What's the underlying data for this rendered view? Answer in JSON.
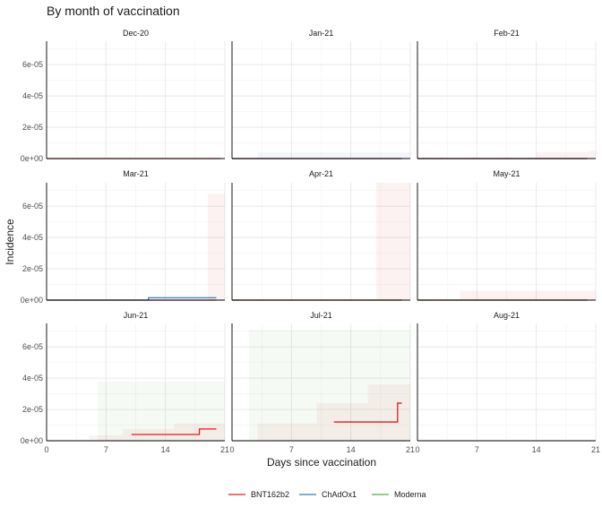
{
  "chart_data": {
    "type": "line",
    "title": "By month of vaccination",
    "xlabel": "Days since vaccination",
    "ylabel": "Incidence",
    "xlim": [
      0,
      21
    ],
    "ylim": [
      0,
      7.5e-05
    ],
    "x_ticks": [
      0,
      7,
      14,
      21
    ],
    "x_tick_labels": [
      "0",
      "7",
      "14",
      "21"
    ],
    "y_ticks": [
      0,
      2e-05,
      4e-05,
      6e-05
    ],
    "y_tick_labels": [
      "0e+00",
      "2e-05",
      "4e-05",
      "6e-05"
    ],
    "grid": true,
    "legend_position": "bottom",
    "legend": [
      {
        "name": "BNT162b2",
        "color": "#e41a1c"
      },
      {
        "name": "ChAdOx1",
        "color": "#377eb8"
      },
      {
        "name": "Moderna",
        "color": "#4daf4a"
      }
    ],
    "panels": [
      {
        "label": "Dec-20",
        "series": [
          {
            "name": "BNT162b2",
            "x": [
              0,
              20.5
            ],
            "y": [
              0,
              0
            ]
          }
        ],
        "bands": []
      },
      {
        "label": "Jan-21",
        "series": [
          {
            "name": "BNT162b2",
            "x": [
              0,
              20
            ],
            "y": [
              0,
              0
            ]
          },
          {
            "name": "ChAdOx1",
            "x": [
              0,
              20
            ],
            "y": [
              0,
              0
            ]
          }
        ],
        "bands": [
          {
            "series": "ChAdOx1",
            "x0": 3,
            "x1": 21,
            "lower": 0,
            "upper": 4e-06
          }
        ]
      },
      {
        "label": "Feb-21",
        "series": [
          {
            "name": "BNT162b2",
            "x": [
              0,
              20
            ],
            "y": [
              0,
              0
            ]
          },
          {
            "name": "ChAdOx1",
            "x": [
              0,
              20
            ],
            "y": [
              0,
              0
            ]
          }
        ],
        "bands": [
          {
            "series": "BNT162b2",
            "x0": 14,
            "x1": 20,
            "lower": 0,
            "upper": 4e-06
          },
          {
            "series": "BNT162b2",
            "x0": 20,
            "x1": 21,
            "lower": 0,
            "upper": 5e-06
          }
        ]
      },
      {
        "label": "Mar-21",
        "series": [
          {
            "name": "BNT162b2",
            "x": [
              0,
              20
            ],
            "y": [
              0,
              0
            ]
          },
          {
            "name": "ChAdOx1",
            "x": [
              0,
              12,
              12,
              20
            ],
            "y": [
              0,
              0,
              1.5e-06,
              1.5e-06
            ]
          }
        ],
        "bands": [
          {
            "series": "BNT162b2",
            "x0": 19,
            "x1": 21,
            "lower": 0,
            "upper": 6.8e-05
          }
        ]
      },
      {
        "label": "Apr-21",
        "series": [
          {
            "name": "BNT162b2",
            "x": [
              0,
              20
            ],
            "y": [
              0,
              0
            ]
          },
          {
            "name": "Moderna",
            "x": [
              0,
              20
            ],
            "y": [
              0,
              0
            ]
          }
        ],
        "bands": [
          {
            "series": "BNT162b2",
            "x0": 17,
            "x1": 21,
            "lower": 0,
            "upper": 7.5e-05
          }
        ]
      },
      {
        "label": "May-21",
        "series": [
          {
            "name": "BNT162b2",
            "x": [
              0,
              20
            ],
            "y": [
              0,
              0
            ]
          },
          {
            "name": "Moderna",
            "x": [
              0,
              20
            ],
            "y": [
              0,
              0
            ]
          }
        ],
        "bands": [
          {
            "series": "BNT162b2",
            "x0": 5,
            "x1": 21,
            "lower": 0,
            "upper": 6e-06
          }
        ]
      },
      {
        "label": "Jun-21",
        "series": [
          {
            "name": "BNT162b2",
            "x": [
              10,
              18,
              18,
              20
            ],
            "y": [
              4e-06,
              4e-06,
              7.5e-06,
              7.5e-06
            ]
          }
        ],
        "bands": [
          {
            "series": "Moderna",
            "x0": 6,
            "x1": 21,
            "lower": 0,
            "upper": 3.8e-05
          },
          {
            "series": "BNT162b2",
            "x0": 5,
            "x1": 9,
            "lower": 0,
            "upper": 3.5e-06
          },
          {
            "series": "BNT162b2",
            "x0": 9,
            "x1": 15,
            "lower": 0,
            "upper": 7.5e-06
          },
          {
            "series": "BNT162b2",
            "x0": 15,
            "x1": 21,
            "lower": 0,
            "upper": 1.1e-05
          }
        ]
      },
      {
        "label": "Jul-21",
        "series": [
          {
            "name": "BNT162b2",
            "x": [
              12,
              16.5,
              16.5,
              19.5,
              19.5,
              20
            ],
            "y": [
              1.2e-05,
              1.2e-05,
              1.2e-05,
              1.2e-05,
              2.4e-05,
              2.4e-05
            ]
          }
        ],
        "bands": [
          {
            "series": "Moderna",
            "x0": 2,
            "x1": 21,
            "lower": 0,
            "upper": 7.1e-05
          },
          {
            "series": "BNT162b2",
            "x0": 3,
            "x1": 10,
            "lower": 0,
            "upper": 1.1e-05
          },
          {
            "series": "BNT162b2",
            "x0": 10,
            "x1": 16,
            "lower": 0,
            "upper": 2.4e-05
          },
          {
            "series": "BNT162b2",
            "x0": 16,
            "x1": 21,
            "lower": 0,
            "upper": 3.6e-05
          }
        ]
      },
      {
        "label": "Aug-21",
        "series": [],
        "bands": []
      }
    ]
  }
}
